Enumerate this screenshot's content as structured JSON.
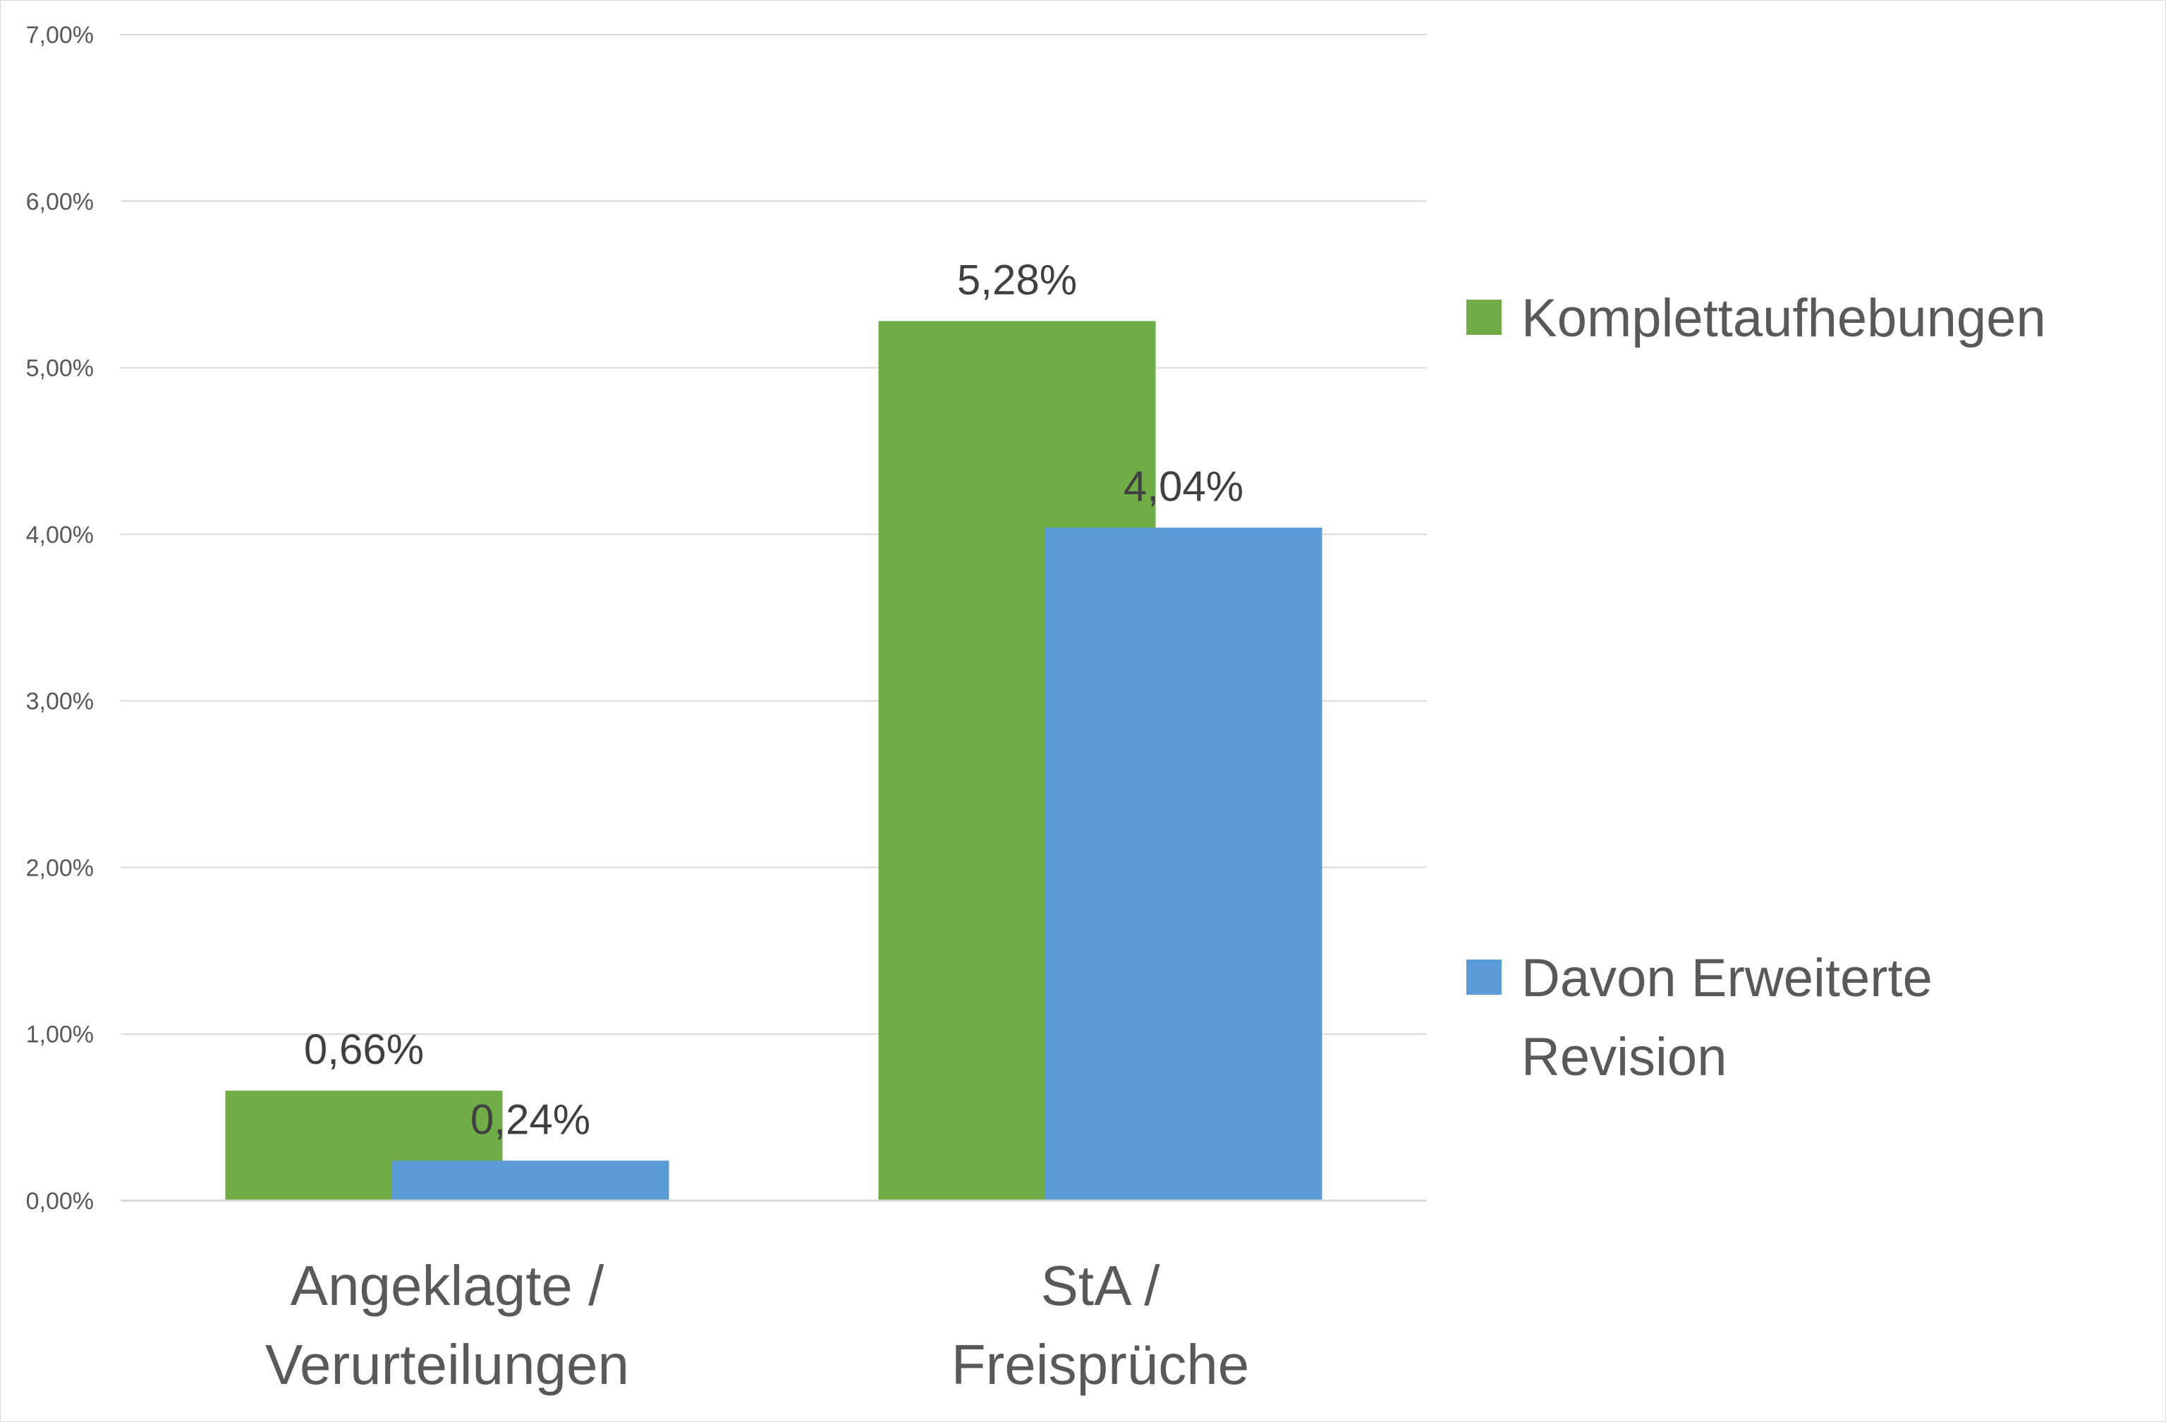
{
  "chart_data": {
    "type": "bar",
    "categories": [
      [
        "Angeklagte /",
        "Verurteilungen"
      ],
      [
        "StA /",
        "Freisprüche"
      ]
    ],
    "series": [
      {
        "name": [
          "Komplettaufhebungen"
        ],
        "color": "#70ad47",
        "values": [
          0.66,
          5.28
        ],
        "labels": [
          "0,66%",
          "5,28%"
        ]
      },
      {
        "name": [
          "Davon Erweiterte",
          "Revision"
        ],
        "color": "#5b9bd5",
        "values": [
          0.24,
          4.04
        ],
        "labels": [
          "0,24%",
          "4,04%"
        ]
      }
    ],
    "ylim": [
      0,
      7
    ],
    "yticks": [
      {
        "value": 0,
        "label": "0,00%"
      },
      {
        "value": 1,
        "label": "1,00%"
      },
      {
        "value": 2,
        "label": "2,00%"
      },
      {
        "value": 3,
        "label": "3,00%"
      },
      {
        "value": 4,
        "label": "4,00%"
      },
      {
        "value": 5,
        "label": "5,00%"
      },
      {
        "value": 6,
        "label": "6,00%"
      },
      {
        "value": 7,
        "label": "7,00%"
      }
    ],
    "grid": true,
    "legend_position": "right",
    "gridline_color": "#d9d9d9"
  }
}
